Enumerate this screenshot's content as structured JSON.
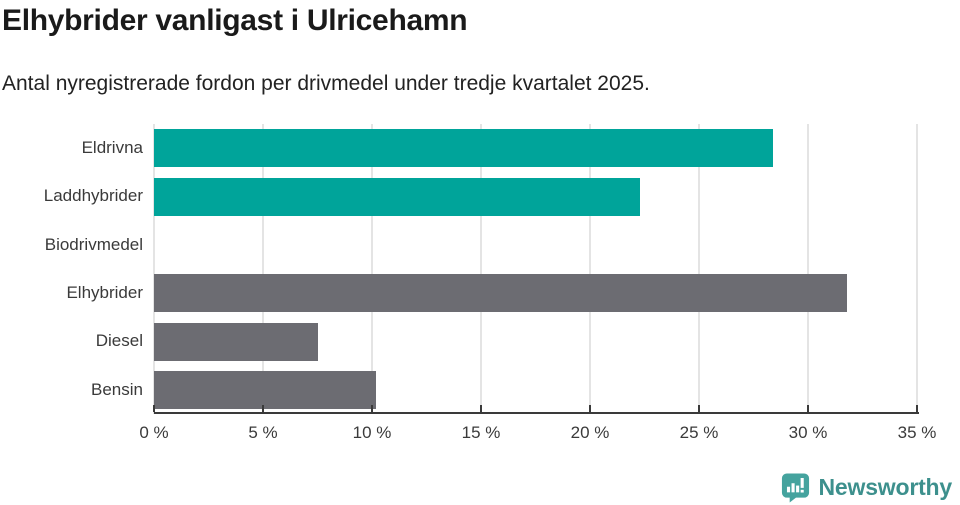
{
  "title": "Elhybrider vanligast i Ulricehamn",
  "subtitle": "Antal nyregistrerade fordon per drivmedel under tredje kvartalet 2025.",
  "chart_data": {
    "type": "bar",
    "orientation": "horizontal",
    "title": "Elhybrider vanligast i Ulricehamn",
    "subtitle": "Antal nyregistrerade fordon per drivmedel under tredje kvartalet 2025.",
    "categories": [
      "Eldrivna",
      "Laddhybrider",
      "Biodrivmedel",
      "Elhybrider",
      "Diesel",
      "Bensin"
    ],
    "values": [
      28.4,
      22.3,
      0,
      31.8,
      7.5,
      10.2
    ],
    "unit": "%",
    "bar_colors": [
      "#00a49a",
      "#00a49a",
      "#6c6c72",
      "#6c6c72",
      "#6c6c72",
      "#6c6c72"
    ],
    "highlight_color": "#00a49a",
    "default_color": "#6c6c72",
    "xlim": [
      0,
      35
    ],
    "x_tick_values": [
      0,
      5,
      10,
      15,
      20,
      25,
      30,
      35
    ],
    "x_tick_labels": [
      "0 %",
      "5 %",
      "10 %",
      "15 %",
      "20 %",
      "25 %",
      "30 %",
      "35 %"
    ],
    "grid": true,
    "gridline_color": "#e4e4e4",
    "axis_color": "#3a3a3a",
    "legend": "none"
  },
  "footer": {
    "brand": "Newsworthy",
    "brand_color": "#3d908d",
    "logo_icon": "newsworthy-chart-bubble-icon",
    "logo_icon_color": "#45a39e"
  }
}
